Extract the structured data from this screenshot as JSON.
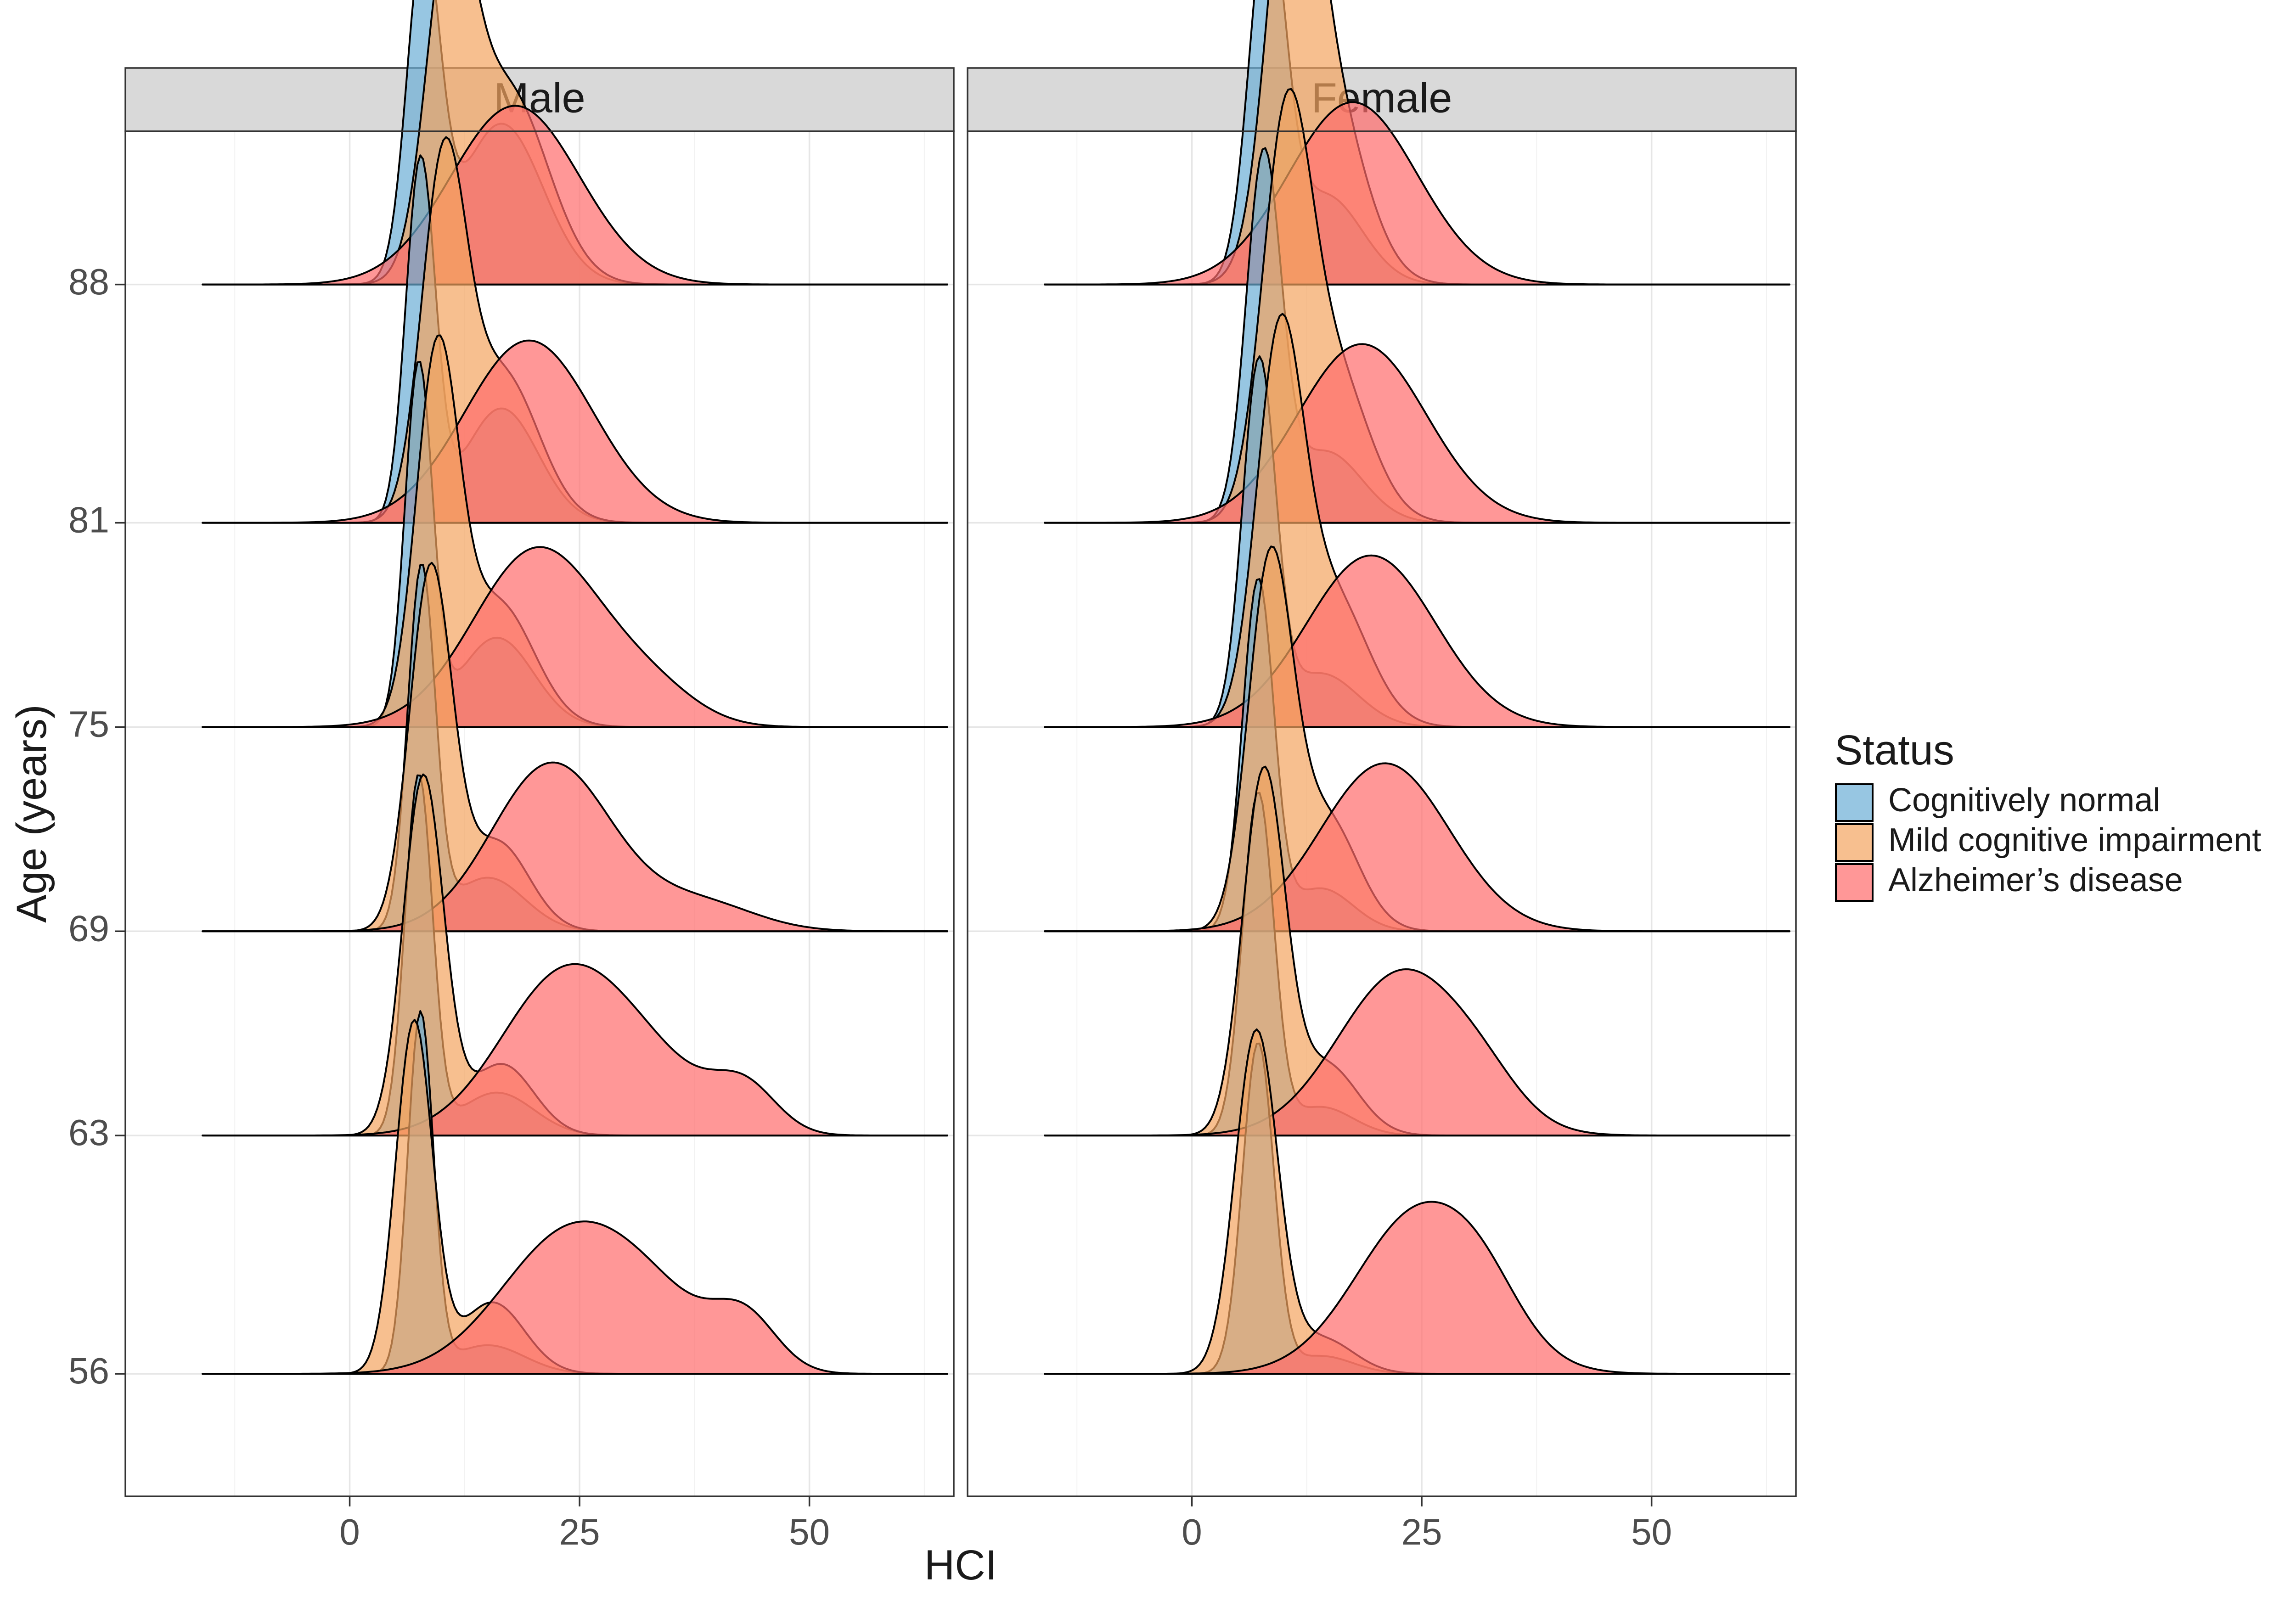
{
  "chart_data": {
    "type": "ridgeline",
    "xlabel": "HCI",
    "ylabel": "Age (years)",
    "xlim": [
      -24.4,
      65.7
    ],
    "xticks": [
      0,
      25,
      50
    ],
    "xminor": [
      -12.5,
      12.5,
      37.5,
      62.5
    ],
    "ylim": [
      52.4,
      92.5
    ],
    "yticks": [
      56,
      63,
      69,
      75,
      81,
      88
    ],
    "ridge_height_units": 10.5,
    "legend": {
      "title": "Status",
      "position": "right",
      "entries": [
        {
          "name": "Cognitively normal",
          "color": "#6baed6"
        },
        {
          "name": "Mild cognitive impairment",
          "color": "#f4a460"
        },
        {
          "name": "Alzheimer’s disease",
          "color": "#ff6b6b"
        }
      ]
    },
    "panels": [
      {
        "name": "Male",
        "ridges": [
          {
            "age": 56,
            "series": [
              {
                "status": "Cognitively normal",
                "components": [
                  [
                    7.7,
                    1.4,
                    1.0
                  ],
                  [
                    15,
                    4,
                    0.08
                  ]
                ]
              },
              {
                "status": "Mild cognitive impairment",
                "components": [
                  [
                    7.0,
                    2.0,
                    0.98
                  ],
                  [
                    15.5,
                    3.5,
                    0.2
                  ]
                ]
              },
              {
                "status": "Alzheimer’s disease",
                "components": [
                  [
                    24,
                    7.5,
                    0.39
                  ],
                  [
                    43,
                    3.5,
                    0.14
                  ],
                  [
                    34,
                    6,
                    0.12
                  ]
                ]
              }
            ]
          },
          {
            "age": 63,
            "series": [
              {
                "status": "Cognitively normal",
                "components": [
                  [
                    7.5,
                    1.5,
                    1.0
                  ],
                  [
                    16,
                    4,
                    0.12
                  ]
                ]
              },
              {
                "status": "Mild cognitive impairment",
                "components": [
                  [
                    8.0,
                    2.2,
                    1.0
                  ],
                  [
                    16.5,
                    3.5,
                    0.2
                  ]
                ]
              },
              {
                "status": "Alzheimer’s disease",
                "components": [
                  [
                    23.5,
                    7.0,
                    0.45
                  ],
                  [
                    43,
                    3.5,
                    0.12
                  ],
                  [
                    34,
                    6,
                    0.12
                  ]
                ]
              }
            ]
          },
          {
            "age": 69,
            "series": [
              {
                "status": "Cognitively normal",
                "components": [
                  [
                    7.8,
                    1.5,
                    1.0
                  ],
                  [
                    15,
                    4,
                    0.15
                  ]
                ]
              },
              {
                "status": "Mild cognitive impairment",
                "components": [
                  [
                    8.8,
                    2.3,
                    1.0
                  ],
                  [
                    16,
                    3.5,
                    0.25
                  ]
                ]
              },
              {
                "status": "Alzheimer’s disease",
                "components": [
                  [
                    22,
                    6.5,
                    0.47
                  ],
                  [
                    38,
                    6,
                    0.08
                  ]
                ]
              }
            ]
          },
          {
            "age": 75,
            "series": [
              {
                "status": "Cognitively normal",
                "components": [
                  [
                    7.5,
                    1.5,
                    1.0
                  ],
                  [
                    16,
                    4,
                    0.25
                  ]
                ]
              },
              {
                "status": "Mild cognitive impairment",
                "components": [
                  [
                    9.5,
                    2.3,
                    1.0
                  ],
                  [
                    16,
                    4,
                    0.35
                  ]
                ]
              },
              {
                "status": "Alzheimer’s disease",
                "components": [
                  [
                    20.5,
                    7.0,
                    0.5
                  ],
                  [
                    33,
                    5,
                    0.08
                  ]
                ]
              }
            ]
          },
          {
            "age": 81,
            "series": [
              {
                "status": "Cognitively normal",
                "components": [
                  [
                    7.7,
                    1.6,
                    1.0
                  ],
                  [
                    16.5,
                    4,
                    0.32
                  ]
                ]
              },
              {
                "status": "Mild cognitive impairment",
                "components": [
                  [
                    10.2,
                    2.4,
                    0.95
                  ],
                  [
                    16.5,
                    4,
                    0.42
                  ]
                ]
              },
              {
                "status": "Alzheimer’s disease",
                "components": [
                  [
                    19.5,
                    7.0,
                    0.51
                  ]
                ]
              }
            ]
          },
          {
            "age": 88,
            "series": [
              {
                "status": "Cognitively normal",
                "components": [
                  [
                    8.0,
                    1.8,
                    0.9
                  ],
                  [
                    16.5,
                    4.5,
                    0.45
                  ]
                ]
              },
              {
                "status": "Mild cognitive impairment",
                "components": [
                  [
                    10.8,
                    2.5,
                    0.85
                  ],
                  [
                    17,
                    4.5,
                    0.55
                  ]
                ]
              },
              {
                "status": "Alzheimer’s disease",
                "components": [
                  [
                    18.0,
                    7.0,
                    0.5
                  ]
                ]
              }
            ]
          }
        ]
      },
      {
        "name": "Female",
        "ridges": [
          {
            "age": 56,
            "series": [
              {
                "status": "Cognitively normal",
                "components": [
                  [
                    7.2,
                    1.7,
                    0.92
                  ],
                  [
                    14,
                    3.5,
                    0.05
                  ]
                ]
              },
              {
                "status": "Mild cognitive impairment",
                "components": [
                  [
                    7.0,
                    2.3,
                    0.95
                  ],
                  [
                    14,
                    3.5,
                    0.1
                  ]
                ]
              },
              {
                "status": "Alzheimer’s disease",
                "components": [
                  [
                    25,
                    7.0,
                    0.46
                  ],
                  [
                    32,
                    4,
                    0.08
                  ]
                ]
              }
            ]
          },
          {
            "age": 63,
            "series": [
              {
                "status": "Cognitively normal",
                "components": [
                  [
                    7.2,
                    1.7,
                    0.95
                  ],
                  [
                    14,
                    3.5,
                    0.08
                  ]
                ]
              },
              {
                "status": "Mild cognitive impairment",
                "components": [
                  [
                    7.8,
                    2.3,
                    1.0
                  ],
                  [
                    14.5,
                    3.5,
                    0.2
                  ]
                ]
              },
              {
                "status": "Alzheimer’s disease",
                "components": [
                  [
                    23,
                    7.0,
                    0.46
                  ],
                  [
                    32,
                    4,
                    0.06
                  ]
                ]
              }
            ]
          },
          {
            "age": 69,
            "series": [
              {
                "status": "Cognitively normal",
                "components": [
                  [
                    7.2,
                    1.7,
                    0.97
                  ],
                  [
                    14,
                    3.5,
                    0.12
                  ]
                ]
              },
              {
                "status": "Mild cognitive impairment",
                "components": [
                  [
                    8.5,
                    2.4,
                    1.0
                  ],
                  [
                    14.5,
                    3.5,
                    0.32
                  ]
                ]
              },
              {
                "status": "Alzheimer’s disease",
                "components": [
                  [
                    21,
                    7.0,
                    0.47
                  ]
                ]
              }
            ]
          },
          {
            "age": 75,
            "series": [
              {
                "status": "Cognitively normal",
                "components": [
                  [
                    7.3,
                    1.8,
                    1.0
                  ],
                  [
                    14,
                    4,
                    0.15
                  ]
                ]
              },
              {
                "status": "Mild cognitive impairment",
                "components": [
                  [
                    9.5,
                    2.5,
                    1.0
                  ],
                  [
                    15,
                    4,
                    0.38
                  ]
                ]
              },
              {
                "status": "Alzheimer’s disease",
                "components": [
                  [
                    19.5,
                    7.0,
                    0.48
                  ]
                ]
              }
            ]
          },
          {
            "age": 81,
            "series": [
              {
                "status": "Cognitively normal",
                "components": [
                  [
                    7.8,
                    1.9,
                    1.0
                  ],
                  [
                    14.5,
                    4,
                    0.2
                  ]
                ]
              },
              {
                "status": "Mild cognitive impairment",
                "components": [
                  [
                    10.2,
                    2.6,
                    0.98
                  ],
                  [
                    15,
                    4,
                    0.45
                  ]
                ]
              },
              {
                "status": "Alzheimer’s disease",
                "components": [
                  [
                    18.5,
                    7.0,
                    0.5
                  ]
                ]
              }
            ]
          },
          {
            "age": 88,
            "series": [
              {
                "status": "Cognitively normal",
                "components": [
                  [
                    8.2,
                    2.0,
                    0.98
                  ],
                  [
                    14.5,
                    4,
                    0.25
                  ]
                ]
              },
              {
                "status": "Mild cognitive impairment",
                "components": [
                  [
                    10.8,
                    2.6,
                    1.0
                  ],
                  [
                    14.5,
                    4,
                    0.55
                  ]
                ]
              },
              {
                "status": "Alzheimer’s disease",
                "components": [
                  [
                    17.5,
                    7.0,
                    0.51
                  ]
                ]
              }
            ]
          }
        ]
      }
    ]
  }
}
